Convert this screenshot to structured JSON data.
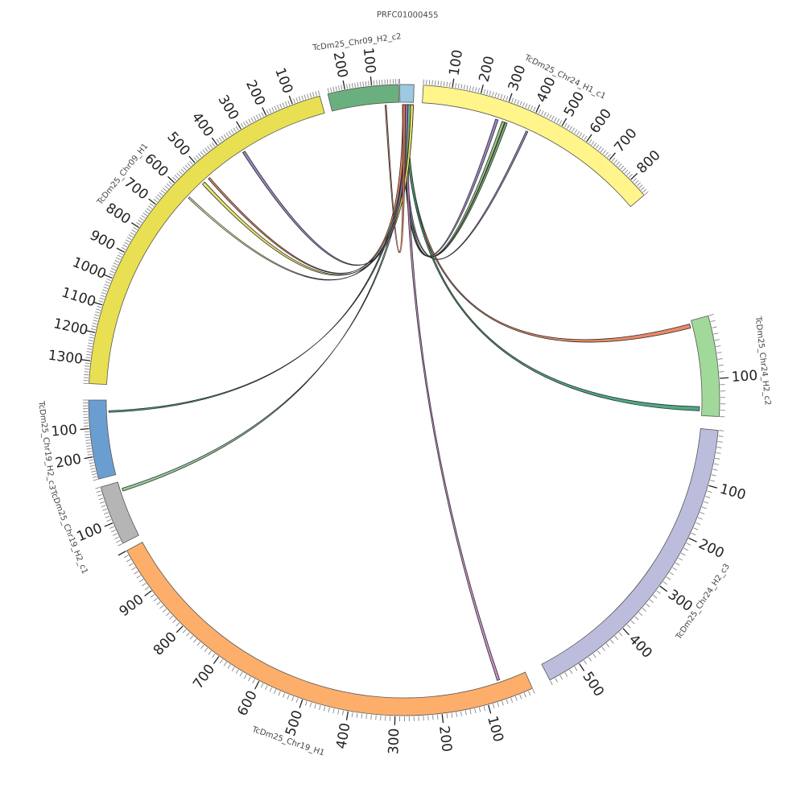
{
  "chart_data": {
    "type": "chord",
    "title": "",
    "segments": [
      {
        "name": "PRFC01000455",
        "length": 5,
        "color": "#9ecae1",
        "label_ticks": []
      },
      {
        "name": "TcDm25_Chr24_H1_c1",
        "length": 870,
        "color": "#fff58a",
        "label_ticks": [
          100,
          200,
          300,
          400,
          500,
          600,
          700,
          800
        ]
      },
      {
        "name": "TcDm25_Chr24_H2_c2",
        "length": 160,
        "color": "#a1d99b",
        "label_ticks": [
          100
        ]
      },
      {
        "name": "TcDm25_Chr24_H2_c3",
        "length": 560,
        "color": "#bcbddc",
        "label_ticks": [
          100,
          200,
          300,
          400,
          500
        ]
      },
      {
        "name": "TcDm25_Chr19_H1",
        "length": 1000,
        "color": "#fdae6b",
        "label_ticks": [
          100,
          200,
          300,
          400,
          500,
          600,
          700,
          800,
          900
        ]
      },
      {
        "name": "TcDm25_Chr19_H2_c1",
        "length": 160,
        "color": "#b5b5b5",
        "label_ticks": [
          100
        ]
      },
      {
        "name": "TcDm25_Chr19_H2_c3",
        "length": 280,
        "color": "#6b9ed0",
        "label_ticks": [
          100,
          200
        ]
      },
      {
        "name": "TcDm25_Chr09_H1",
        "length": 1380,
        "color": "#e8e052",
        "label_ticks": [
          100,
          200,
          300,
          400,
          500,
          600,
          700,
          800,
          900,
          1000,
          1100,
          1200,
          1300
        ]
      },
      {
        "name": "TcDm25_Chr09_H2_c2",
        "length": 265,
        "color": "#6ab07e",
        "label_ticks": [
          100,
          200
        ]
      }
    ],
    "links": [
      {
        "source": [
          0,
          1,
          2
        ],
        "target": [
          1,
          275,
          285
        ],
        "color": "#8a6fb8"
      },
      {
        "source": [
          0,
          1,
          2
        ],
        "target": [
          1,
          300,
          310
        ],
        "color": "#7fbf6a"
      },
      {
        "source": [
          0,
          1,
          2
        ],
        "target": [
          1,
          312,
          320
        ],
        "color": "#6aa55e"
      },
      {
        "source": [
          0,
          1,
          2
        ],
        "target": [
          1,
          395,
          402
        ],
        "color": "#8a6fb8"
      },
      {
        "source": [
          0,
          2,
          3
        ],
        "target": [
          2,
          5,
          12
        ],
        "color": "#e8744a"
      },
      {
        "source": [
          0,
          2,
          3
        ],
        "target": [
          2,
          145,
          152
        ],
        "color": "#2f9b6e"
      },
      {
        "source": [
          0,
          2,
          3
        ],
        "target": [
          4,
          60,
          66
        ],
        "color": "#c07ec0"
      },
      {
        "source": [
          0,
          3,
          4
        ],
        "target": [
          6,
          40,
          46
        ],
        "color": "#2f9b6e"
      },
      {
        "source": [
          0,
          3,
          4
        ],
        "target": [
          5,
          20,
          28
        ],
        "color": "#7fc48a"
      },
      {
        "source": [
          0,
          4,
          5
        ],
        "target": [
          7,
          600,
          606
        ],
        "color": "#fff6a0"
      },
      {
        "source": [
          0,
          4,
          5
        ],
        "target": [
          7,
          520,
          532
        ],
        "color": "#e8e052"
      },
      {
        "source": [
          0,
          1,
          2
        ],
        "target": [
          7,
          495,
          502
        ],
        "color": "#e8744a"
      },
      {
        "source": [
          0,
          2,
          3
        ],
        "target": [
          7,
          330,
          340
        ],
        "color": "#8a6fb8"
      },
      {
        "source": [
          0,
          1,
          2
        ],
        "target": [
          8,
          50,
          55
        ],
        "color": "#e8744a"
      }
    ]
  }
}
